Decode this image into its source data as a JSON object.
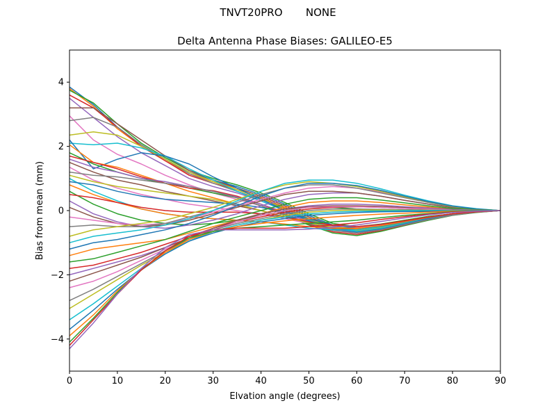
{
  "page": {
    "suptitle": "TNVT20PRO       NONE"
  },
  "chart_data": {
    "type": "line",
    "title": "Delta Antenna Phase Biases: GALILEO-E5",
    "xlabel": "Elvation angle (degrees)",
    "ylabel": "Bias from mean (mm)",
    "xlim": [
      0,
      90
    ],
    "ylim": [
      -5,
      5
    ],
    "xticks": [
      0,
      10,
      20,
      30,
      40,
      50,
      60,
      70,
      80,
      90
    ],
    "yticks": [
      -4,
      -2,
      0,
      2,
      4
    ],
    "grid": false,
    "legend": "none",
    "x": [
      0,
      5,
      10,
      15,
      20,
      25,
      30,
      35,
      40,
      45,
      50,
      55,
      60,
      65,
      70,
      75,
      80,
      85,
      90
    ],
    "colors": [
      "#1f77b4",
      "#ff7f0e",
      "#2ca02c",
      "#d62728",
      "#9467bd",
      "#8c564b",
      "#e377c2",
      "#7f7f7f",
      "#bcbd22",
      "#17becf"
    ],
    "series": [
      {
        "values": [
          3.85,
          3.3,
          2.6,
          2.05,
          1.6,
          1.2,
          0.95,
          0.75,
          0.5,
          0.2,
          -0.15,
          -0.45,
          -0.55,
          -0.45,
          -0.3,
          -0.2,
          -0.1,
          -0.05,
          0
        ]
      },
      {
        "values": [
          3.8,
          3.25,
          2.55,
          2.0,
          1.55,
          1.15,
          0.9,
          0.7,
          0.45,
          0.15,
          -0.2,
          -0.5,
          -0.6,
          -0.5,
          -0.35,
          -0.22,
          -0.12,
          -0.05,
          0
        ]
      },
      {
        "values": [
          3.75,
          3.35,
          2.7,
          2.1,
          1.65,
          1.25,
          1.0,
          0.8,
          0.55,
          0.25,
          -0.1,
          -0.4,
          -0.5,
          -0.42,
          -0.3,
          -0.18,
          -0.1,
          -0.04,
          0
        ]
      },
      {
        "values": [
          3.6,
          3.2,
          2.6,
          2.0,
          1.55,
          1.1,
          0.85,
          0.65,
          0.4,
          0.1,
          -0.25,
          -0.55,
          -0.65,
          -0.55,
          -0.4,
          -0.25,
          -0.12,
          -0.05,
          0
        ]
      },
      {
        "values": [
          3.5,
          2.9,
          2.3,
          1.8,
          1.4,
          1.0,
          0.75,
          0.55,
          0.3,
          0.0,
          -0.3,
          -0.55,
          -0.62,
          -0.5,
          -0.35,
          -0.22,
          -0.1,
          -0.04,
          0
        ]
      },
      {
        "values": [
          3.2,
          3.2,
          2.7,
          2.2,
          1.7,
          1.25,
          0.95,
          0.7,
          0.45,
          0.15,
          -0.2,
          -0.48,
          -0.58,
          -0.48,
          -0.34,
          -0.2,
          -0.1,
          -0.04,
          0
        ]
      },
      {
        "values": [
          2.95,
          2.2,
          1.75,
          1.45,
          1.1,
          0.8,
          0.55,
          0.35,
          0.15,
          -0.1,
          -0.35,
          -0.55,
          -0.6,
          -0.5,
          -0.35,
          -0.22,
          -0.1,
          -0.04,
          0
        ]
      },
      {
        "values": [
          2.8,
          2.9,
          2.6,
          2.05,
          1.6,
          1.15,
          0.85,
          0.6,
          0.35,
          0.05,
          -0.28,
          -0.55,
          -0.65,
          -0.55,
          -0.4,
          -0.25,
          -0.12,
          -0.05,
          0
        ]
      },
      {
        "values": [
          2.35,
          2.45,
          2.35,
          2.0,
          1.6,
          1.2,
          0.9,
          0.65,
          0.38,
          0.08,
          -0.25,
          -0.52,
          -0.62,
          -0.52,
          -0.38,
          -0.24,
          -0.12,
          -0.05,
          0
        ]
      },
      {
        "values": [
          2.1,
          2.05,
          2.1,
          1.95,
          1.7,
          1.3,
          0.95,
          0.6,
          0.3,
          0.0,
          -0.3,
          -0.55,
          -0.65,
          -0.55,
          -0.4,
          -0.25,
          -0.12,
          -0.05,
          0
        ]
      },
      {
        "values": [
          2.2,
          1.3,
          1.6,
          1.8,
          1.7,
          1.45,
          1.05,
          0.7,
          0.35,
          0.0,
          -0.32,
          -0.58,
          -0.68,
          -0.58,
          -0.42,
          -0.26,
          -0.13,
          -0.05,
          0
        ]
      },
      {
        "values": [
          2.05,
          1.5,
          1.35,
          1.1,
          0.85,
          0.6,
          0.4,
          0.2,
          0.0,
          -0.2,
          -0.4,
          -0.55,
          -0.58,
          -0.48,
          -0.34,
          -0.22,
          -0.1,
          -0.04,
          0
        ]
      },
      {
        "values": [
          1.8,
          1.45,
          1.2,
          1.0,
          0.85,
          0.7,
          0.55,
          0.4,
          0.15,
          -0.15,
          -0.45,
          -0.7,
          -0.78,
          -0.65,
          -0.47,
          -0.3,
          -0.15,
          -0.06,
          0
        ]
      },
      {
        "values": [
          1.7,
          1.5,
          1.3,
          1.05,
          0.85,
          0.7,
          0.62,
          0.45,
          0.2,
          -0.1,
          -0.42,
          -0.66,
          -0.74,
          -0.62,
          -0.45,
          -0.28,
          -0.14,
          -0.05,
          0
        ]
      },
      {
        "values": [
          1.6,
          1.35,
          1.2,
          1.0,
          0.9,
          0.75,
          0.6,
          0.42,
          0.2,
          -0.05,
          -0.35,
          -0.6,
          -0.7,
          -0.6,
          -0.44,
          -0.28,
          -0.14,
          -0.05,
          0
        ]
      },
      {
        "values": [
          1.5,
          1.2,
          0.95,
          0.8,
          0.6,
          0.45,
          0.3,
          0.15,
          0.0,
          -0.2,
          -0.4,
          -0.55,
          -0.6,
          -0.5,
          -0.36,
          -0.22,
          -0.1,
          -0.04,
          0
        ]
      },
      {
        "values": [
          1.35,
          0.95,
          0.7,
          0.5,
          0.35,
          0.2,
          0.1,
          0.0,
          -0.1,
          -0.25,
          -0.4,
          -0.5,
          -0.52,
          -0.45,
          -0.33,
          -0.2,
          -0.1,
          -0.04,
          0
        ]
      },
      {
        "values": [
          1.2,
          1.1,
          1.05,
          0.95,
          0.85,
          0.75,
          0.6,
          0.4,
          0.15,
          -0.12,
          -0.4,
          -0.62,
          -0.7,
          -0.6,
          -0.44,
          -0.28,
          -0.14,
          -0.05,
          0
        ]
      },
      {
        "values": [
          1.1,
          0.9,
          0.75,
          0.65,
          0.55,
          0.45,
          0.35,
          0.2,
          0.0,
          -0.2,
          -0.38,
          -0.52,
          -0.55,
          -0.47,
          -0.34,
          -0.21,
          -0.1,
          -0.04,
          0
        ]
      },
      {
        "values": [
          1.0,
          0.6,
          0.3,
          0.05,
          -0.1,
          -0.2,
          -0.25,
          -0.3,
          -0.35,
          -0.45,
          -0.55,
          -0.6,
          -0.6,
          -0.5,
          -0.36,
          -0.22,
          -0.1,
          -0.04,
          0
        ]
      },
      {
        "values": [
          0.9,
          0.8,
          0.6,
          0.45,
          0.35,
          0.3,
          0.25,
          0.2,
          0.1,
          -0.05,
          -0.25,
          -0.45,
          -0.55,
          -0.48,
          -0.35,
          -0.22,
          -0.1,
          -0.04,
          0
        ]
      },
      {
        "values": [
          0.8,
          0.5,
          0.25,
          0.05,
          -0.1,
          -0.2,
          -0.25,
          -0.3,
          -0.35,
          -0.42,
          -0.5,
          -0.55,
          -0.55,
          -0.47,
          -0.34,
          -0.21,
          -0.1,
          -0.04,
          0
        ]
      },
      {
        "values": [
          0.6,
          0.2,
          -0.1,
          -0.3,
          -0.4,
          -0.45,
          -0.4,
          -0.3,
          -0.15,
          0.0,
          0.1,
          0.1,
          0.05,
          0.0,
          -0.02,
          -0.03,
          -0.02,
          -0.01,
          0
        ]
      },
      {
        "values": [
          0.5,
          0.4,
          0.25,
          0.1,
          0.0,
          -0.05,
          -0.05,
          -0.05,
          -0.1,
          -0.2,
          -0.35,
          -0.45,
          -0.5,
          -0.43,
          -0.32,
          -0.2,
          -0.1,
          -0.04,
          0
        ]
      },
      {
        "values": [
          0.3,
          -0.1,
          -0.35,
          -0.5,
          -0.55,
          -0.45,
          -0.3,
          -0.1,
          0.15,
          0.35,
          0.5,
          0.55,
          0.55,
          0.45,
          0.32,
          0.2,
          0.1,
          0.04,
          0
        ]
      },
      {
        "values": [
          0.1,
          -0.2,
          -0.4,
          -0.5,
          -0.45,
          -0.3,
          -0.1,
          0.1,
          0.3,
          0.5,
          0.6,
          0.6,
          0.55,
          0.45,
          0.32,
          0.2,
          0.1,
          0.04,
          0
        ]
      },
      {
        "values": [
          -0.2,
          -0.3,
          -0.4,
          -0.45,
          -0.4,
          -0.25,
          -0.05,
          0.15,
          0.35,
          0.55,
          0.7,
          0.75,
          0.7,
          0.58,
          0.42,
          0.26,
          0.13,
          0.05,
          0
        ]
      },
      {
        "values": [
          -0.5,
          -0.45,
          -0.5,
          -0.5,
          -0.4,
          -0.2,
          0.0,
          0.25,
          0.5,
          0.7,
          0.8,
          0.8,
          0.7,
          0.55,
          0.4,
          0.25,
          0.12,
          0.05,
          0
        ]
      },
      {
        "values": [
          -0.8,
          -0.6,
          -0.5,
          -0.4,
          -0.3,
          -0.1,
          0.1,
          0.35,
          0.6,
          0.8,
          0.9,
          0.85,
          0.75,
          0.6,
          0.43,
          0.27,
          0.13,
          0.05,
          0
        ]
      },
      {
        "values": [
          -1.0,
          -0.8,
          -0.7,
          -0.6,
          -0.45,
          -0.25,
          0.0,
          0.3,
          0.6,
          0.85,
          0.95,
          0.95,
          0.85,
          0.68,
          0.48,
          0.3,
          0.15,
          0.06,
          0
        ]
      },
      {
        "values": [
          -1.2,
          -1.0,
          -0.9,
          -0.75,
          -0.6,
          -0.4,
          -0.15,
          0.15,
          0.45,
          0.7,
          0.85,
          0.85,
          0.78,
          0.63,
          0.45,
          0.28,
          0.14,
          0.05,
          0
        ]
      },
      {
        "values": [
          -1.4,
          -1.2,
          -1.1,
          -1.0,
          -0.9,
          -0.7,
          -0.5,
          -0.3,
          -0.1,
          0.1,
          0.25,
          0.3,
          0.3,
          0.25,
          0.18,
          0.11,
          0.05,
          0.02,
          0
        ]
      },
      {
        "values": [
          -1.6,
          -1.5,
          -1.3,
          -1.1,
          -0.9,
          -0.65,
          -0.4,
          -0.2,
          0.0,
          0.2,
          0.35,
          0.4,
          0.4,
          0.33,
          0.24,
          0.15,
          0.07,
          0.03,
          0
        ]
      },
      {
        "values": [
          -1.8,
          -1.7,
          -1.5,
          -1.3,
          -1.05,
          -0.8,
          -0.55,
          -0.35,
          -0.2,
          -0.05,
          0.05,
          0.1,
          0.12,
          0.1,
          0.07,
          0.04,
          0.02,
          0.01,
          0
        ]
      },
      {
        "values": [
          -2.0,
          -1.8,
          -1.6,
          -1.4,
          -1.15,
          -0.85,
          -0.55,
          -0.3,
          -0.1,
          0.05,
          0.15,
          0.2,
          0.2,
          0.17,
          0.12,
          0.08,
          0.04,
          0.01,
          0
        ]
      },
      {
        "values": [
          -2.2,
          -1.95,
          -1.7,
          -1.45,
          -1.15,
          -0.85,
          -0.55,
          -0.3,
          -0.1,
          0.05,
          0.12,
          0.15,
          0.15,
          0.13,
          0.09,
          0.06,
          0.03,
          0.01,
          0
        ]
      },
      {
        "values": [
          -2.4,
          -2.2,
          -1.9,
          -1.55,
          -1.2,
          -0.9,
          -0.6,
          -0.35,
          -0.15,
          0.0,
          0.1,
          0.12,
          0.12,
          0.1,
          0.07,
          0.05,
          0.02,
          0.01,
          0
        ]
      },
      {
        "values": [
          -2.8,
          -2.45,
          -2.05,
          -1.65,
          -1.25,
          -0.9,
          -0.6,
          -0.4,
          -0.25,
          -0.1,
          0.0,
          0.05,
          0.05,
          0.04,
          0.03,
          0.02,
          0.01,
          0.0,
          0
        ]
      },
      {
        "values": [
          -3.05,
          -2.6,
          -2.15,
          -1.7,
          -1.3,
          -0.95,
          -0.65,
          -0.45,
          -0.3,
          -0.15,
          -0.05,
          0.0,
          0.02,
          0.02,
          0.01,
          0.01,
          0.0,
          0.0,
          0
        ]
      },
      {
        "values": [
          -3.4,
          -2.9,
          -2.35,
          -1.8,
          -1.35,
          -0.95,
          -0.65,
          -0.45,
          -0.3,
          -0.2,
          -0.1,
          -0.05,
          -0.02,
          -0.01,
          0.0,
          0.0,
          0.0,
          0.0,
          0
        ]
      },
      {
        "values": [
          -3.7,
          -3.1,
          -2.45,
          -1.85,
          -1.35,
          -0.95,
          -0.7,
          -0.5,
          -0.35,
          -0.25,
          -0.15,
          -0.1,
          -0.06,
          -0.04,
          -0.03,
          -0.02,
          -0.01,
          0.0,
          0
        ]
      },
      {
        "values": [
          -3.9,
          -3.25,
          -2.5,
          -1.85,
          -1.3,
          -0.9,
          -0.65,
          -0.5,
          -0.4,
          -0.32,
          -0.25,
          -0.2,
          -0.15,
          -0.11,
          -0.08,
          -0.05,
          -0.02,
          -0.01,
          0
        ]
      },
      {
        "values": [
          -4.1,
          -3.35,
          -2.55,
          -1.85,
          -1.25,
          -0.85,
          -0.65,
          -0.55,
          -0.5,
          -0.45,
          -0.4,
          -0.35,
          -0.3,
          -0.22,
          -0.15,
          -0.09,
          -0.04,
          -0.01,
          0
        ]
      },
      {
        "values": [
          -4.2,
          -3.4,
          -2.6,
          -1.85,
          -1.25,
          -0.8,
          -0.6,
          -0.55,
          -0.55,
          -0.55,
          -0.5,
          -0.45,
          -0.38,
          -0.28,
          -0.19,
          -0.11,
          -0.05,
          -0.02,
          0
        ]
      },
      {
        "values": [
          -4.3,
          -3.5,
          -2.6,
          -1.8,
          -1.15,
          -0.75,
          -0.6,
          -0.6,
          -0.6,
          -0.6,
          -0.58,
          -0.52,
          -0.45,
          -0.34,
          -0.23,
          -0.13,
          -0.06,
          -0.02,
          0
        ]
      }
    ]
  }
}
